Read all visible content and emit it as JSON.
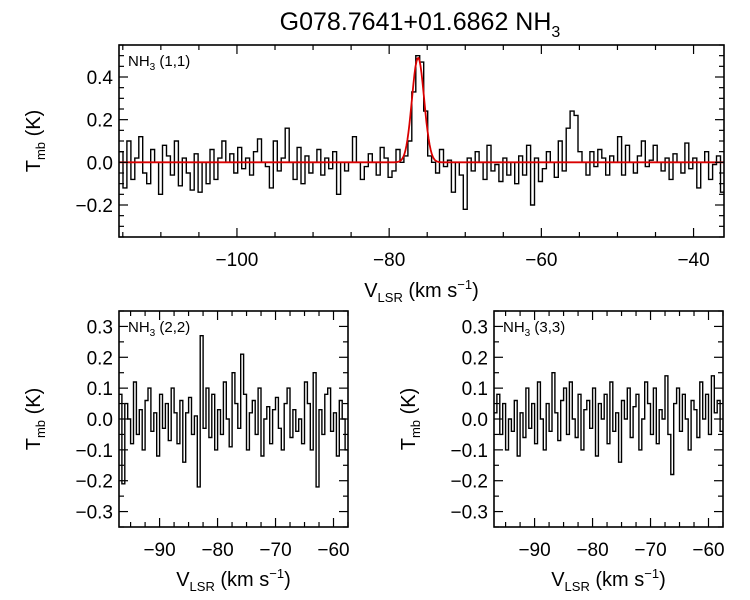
{
  "figure": {
    "title_main": "G078.7641+01.6862 NH",
    "title_sub": "3"
  },
  "chart_data": [
    {
      "type": "line",
      "panel_label": "NH3 (1,1)",
      "panel_label_main": "NH",
      "panel_label_sub": "3",
      "panel_label_suffix": " (1,1)",
      "xlabel_main": "V",
      "xlabel_sub": "LSR",
      "xlabel_unit": " (km s",
      "xlabel_exp": "−1",
      "xlabel_close": ")",
      "ylabel_main": "T",
      "ylabel_sub": "mb",
      "ylabel_unit": " (K)",
      "xlim": [
        -115.5,
        -36
      ],
      "ylim": [
        -0.35,
        0.55
      ],
      "xticks": [
        -100,
        -80,
        -60,
        -40
      ],
      "xtick_labels": [
        "−100",
        "−80",
        "−60",
        "−40"
      ],
      "yticks": [
        -0.2,
        0.0,
        0.2,
        0.4
      ],
      "ytick_labels": [
        "−0.2",
        "0.0",
        "0.2",
        "0.4"
      ],
      "series": [
        {
          "style": "histogram",
          "color": "#000000",
          "x": [
            -115.5,
            -114.98,
            -114.46,
            -113.94,
            -113.42,
            -112.9,
            -112.38,
            -111.86,
            -111.34,
            -110.82,
            -110.3,
            -109.78,
            -109.26,
            -108.74,
            -108.22,
            -107.7,
            -107.18,
            -106.66,
            -106.14,
            -105.62,
            -105.1,
            -104.58,
            -104.06,
            -103.54,
            -103.02,
            -102.5,
            -101.98,
            -101.46,
            -100.94,
            -100.42,
            -99.9,
            -99.38,
            -98.86,
            -98.34,
            -97.82,
            -97.3,
            -96.78,
            -96.26,
            -95.74,
            -95.22,
            -94.7,
            -94.18,
            -93.66,
            -93.14,
            -92.62,
            -92.1,
            -91.58,
            -91.06,
            -90.54,
            -90.02,
            -89.5,
            -88.98,
            -88.46,
            -87.94,
            -87.42,
            -86.9,
            -86.38,
            -85.86,
            -85.34,
            -84.82,
            -84.3,
            -83.78,
            -83.26,
            -82.74,
            -82.22,
            -81.7,
            -81.18,
            -80.66,
            -80.14,
            -79.62,
            -79.1,
            -78.58,
            -78.06,
            -77.54,
            -77.02,
            -76.5,
            -75.98,
            -75.46,
            -74.94,
            -74.42,
            -73.9,
            -73.38,
            -72.86,
            -72.34,
            -71.82,
            -71.3,
            -70.78,
            -70.26,
            -69.74,
            -69.22,
            -68.7,
            -68.18,
            -67.66,
            -67.14,
            -66.62,
            -66.1,
            -65.58,
            -65.06,
            -64.54,
            -64.02,
            -63.5,
            -62.98,
            -62.46,
            -61.94,
            -61.42,
            -60.9,
            -60.38,
            -59.86,
            -59.34,
            -58.82,
            -58.3,
            -57.78,
            -57.26,
            -56.74,
            -56.22,
            -55.7,
            -55.18,
            -54.66,
            -54.14,
            -53.62,
            -53.1,
            -52.58,
            -52.06,
            -51.54,
            -51.02,
            -50.5,
            -49.98,
            -49.46,
            -48.94,
            -48.42,
            -47.9,
            -47.38,
            -46.86,
            -46.34,
            -45.82,
            -45.3,
            -44.78,
            -44.26,
            -43.74,
            -43.22,
            -42.7,
            -42.18,
            -41.66,
            -41.14,
            -40.62,
            -40.1,
            -39.58,
            -39.06,
            -38.54,
            -38.02,
            -37.5,
            -36.98,
            -36.46
          ],
          "values": [
            0.05,
            -0.12,
            0.1,
            -0.08,
            0.02,
            0.12,
            -0.05,
            -0.1,
            0.06,
            0.0,
            -0.15,
            0.08,
            0.03,
            -0.06,
            0.1,
            -0.11,
            0.02,
            -0.05,
            -0.13,
            0.04,
            -0.14,
            0.0,
            -0.1,
            0.06,
            -0.08,
            0.02,
            0.1,
            0.0,
            0.04,
            -0.05,
            0.07,
            -0.03,
            0.02,
            -0.06,
            0.05,
            0.11,
            0.0,
            -0.02,
            -0.12,
            0.1,
            -0.04,
            0.02,
            0.16,
            0.0,
            -0.08,
            0.07,
            -0.1,
            0.03,
            -0.05,
            0.0,
            0.06,
            -0.06,
            0.02,
            -0.03,
            0.05,
            -0.15,
            0.0,
            -0.04,
            0.0,
            0.12,
            0.0,
            -0.08,
            -0.02,
            0.04,
            0.0,
            -0.06,
            0.07,
            0.02,
            -0.07,
            -0.04,
            0.06,
            0.0,
            0.03,
            0.1,
            0.33,
            0.5,
            0.47,
            0.24,
            0.03,
            0.0,
            -0.05,
            0.06,
            -0.02,
            0.01,
            -0.14,
            0.0,
            -0.06,
            -0.22,
            0.02,
            -0.04,
            0.05,
            0.0,
            -0.08,
            0.08,
            -0.04,
            -0.01,
            -0.09,
            0.02,
            -0.06,
            0.0,
            -0.1,
            0.03,
            -0.06,
            0.08,
            -0.2,
            0.02,
            -0.09,
            -0.03,
            0.05,
            0.0,
            -0.07,
            0.1,
            -0.04,
            0.16,
            0.24,
            0.22,
            0.05,
            0.0,
            -0.06,
            0.05,
            -0.02,
            0.06,
            0.02,
            -0.06,
            0.03,
            0.0,
            0.12,
            -0.06,
            0.08,
            0.0,
            -0.05,
            0.03,
            0.1,
            -0.02,
            0.01,
            0.08,
            0.0,
            -0.04,
            0.02,
            -0.08,
            0.04,
            0.0,
            -0.05,
            0.09,
            -0.03,
            0.02,
            -0.12,
            0.0,
            0.05,
            -0.08,
            -0.01,
            0.03,
            -0.14
          ]
        },
        {
          "style": "gaussian-fit",
          "color": "#d90000",
          "amplitude": 0.49,
          "center": -76.2,
          "sigma": 0.8
        }
      ]
    },
    {
      "type": "line",
      "panel_label": "NH3 (2,2)",
      "panel_label_main": "NH",
      "panel_label_sub": "3",
      "panel_label_suffix": " (2,2)",
      "xlabel_main": "V",
      "xlabel_sub": "LSR",
      "xlabel_unit": " (km s",
      "xlabel_exp": "−1",
      "xlabel_close": ")",
      "ylabel_main": "T",
      "ylabel_sub": "mb",
      "ylabel_unit": " (K)",
      "xlim": [
        -97,
        -57.5
      ],
      "ylim": [
        -0.35,
        0.35
      ],
      "xticks": [
        -90,
        -80,
        -70,
        -60
      ],
      "xtick_labels": [
        "−90",
        "−80",
        "−70",
        "−60"
      ],
      "yticks": [
        -0.3,
        -0.2,
        -0.1,
        0.0,
        0.1,
        0.2,
        0.3
      ],
      "ytick_labels": [
        "−0.3",
        "−0.2",
        "−0.1",
        "0.0",
        "0.1",
        "0.2",
        "0.3"
      ],
      "series": [
        {
          "style": "histogram",
          "color": "#000000",
          "x": [
            -97.0,
            -96.5,
            -96.0,
            -95.5,
            -95.0,
            -94.5,
            -94.0,
            -93.5,
            -93.0,
            -92.5,
            -92.0,
            -91.5,
            -91.0,
            -90.5,
            -90.0,
            -89.5,
            -89.0,
            -88.5,
            -88.0,
            -87.5,
            -87.0,
            -86.5,
            -86.0,
            -85.5,
            -85.0,
            -84.5,
            -84.0,
            -83.5,
            -83.0,
            -82.5,
            -82.0,
            -81.5,
            -81.0,
            -80.5,
            -80.0,
            -79.5,
            -79.0,
            -78.5,
            -78.0,
            -77.5,
            -77.0,
            -76.5,
            -76.0,
            -75.5,
            -75.0,
            -74.5,
            -74.0,
            -73.5,
            -73.0,
            -72.5,
            -72.0,
            -71.5,
            -71.0,
            -70.5,
            -70.0,
            -69.5,
            -69.0,
            -68.5,
            -68.0,
            -67.5,
            -67.0,
            -66.5,
            -66.0,
            -65.5,
            -65.0,
            -64.5,
            -64.0,
            -63.5,
            -63.0,
            -62.5,
            -62.0,
            -61.5,
            -61.0,
            -60.5,
            -60.0,
            -59.5,
            -59.0,
            -58.5,
            -58.0
          ],
          "values": [
            0.08,
            -0.21,
            0.05,
            0.0,
            -0.08,
            0.12,
            -0.05,
            0.03,
            -0.1,
            0.06,
            0.1,
            -0.04,
            0.02,
            -0.12,
            0.08,
            -0.03,
            0.05,
            -0.07,
            0.1,
            0.02,
            -0.08,
            0.06,
            -0.14,
            0.02,
            0.07,
            -0.05,
            0.01,
            -0.22,
            0.27,
            -0.03,
            0.1,
            -0.06,
            0.08,
            -0.1,
            0.03,
            -0.05,
            0.12,
            0.0,
            -0.09,
            0.15,
            0.05,
            -0.03,
            0.21,
            0.08,
            -0.1,
            0.02,
            0.06,
            -0.05,
            0.1,
            -0.12,
            0.0,
            0.04,
            -0.08,
            0.03,
            0.07,
            -0.03,
            -0.1,
            0.05,
            0.1,
            -0.06,
            0.03,
            -0.04,
            0.0,
            -0.08,
            0.12,
            0.05,
            -0.1,
            0.15,
            -0.22,
            0.03,
            -0.05,
            0.08,
            0.1,
            -0.04,
            0.02,
            -0.12,
            0.06,
            0.0,
            -0.1
          ]
        }
      ]
    },
    {
      "type": "line",
      "panel_label": "NH3 (3,3)",
      "panel_label_main": "NH",
      "panel_label_sub": "3",
      "panel_label_suffix": " (3,3)",
      "xlabel_main": "V",
      "xlabel_sub": "LSR",
      "xlabel_unit": " (km s",
      "xlabel_exp": "−1",
      "xlabel_close": ")",
      "ylabel_main": "T",
      "ylabel_sub": "mb",
      "ylabel_unit": " (K)",
      "xlim": [
        -97,
        -57.5
      ],
      "ylim": [
        -0.35,
        0.35
      ],
      "xticks": [
        -90,
        -80,
        -70,
        -60
      ],
      "xtick_labels": [
        "−90",
        "−80",
        "−70",
        "−60"
      ],
      "yticks": [
        -0.3,
        -0.2,
        -0.1,
        0.0,
        0.1,
        0.2,
        0.3
      ],
      "ytick_labels": [
        "−0.3",
        "−0.2",
        "−0.1",
        "0.0",
        "0.1",
        "0.2",
        "0.3"
      ],
      "series": [
        {
          "style": "histogram",
          "color": "#000000",
          "x": [
            -97.0,
            -96.5,
            -96.0,
            -95.5,
            -95.0,
            -94.5,
            -94.0,
            -93.5,
            -93.0,
            -92.5,
            -92.0,
            -91.5,
            -91.0,
            -90.5,
            -90.0,
            -89.5,
            -89.0,
            -88.5,
            -88.0,
            -87.5,
            -87.0,
            -86.5,
            -86.0,
            -85.5,
            -85.0,
            -84.5,
            -84.0,
            -83.5,
            -83.0,
            -82.5,
            -82.0,
            -81.5,
            -81.0,
            -80.5,
            -80.0,
            -79.5,
            -79.0,
            -78.5,
            -78.0,
            -77.5,
            -77.0,
            -76.5,
            -76.0,
            -75.5,
            -75.0,
            -74.5,
            -74.0,
            -73.5,
            -73.0,
            -72.5,
            -72.0,
            -71.5,
            -71.0,
            -70.5,
            -70.0,
            -69.5,
            -69.0,
            -68.5,
            -68.0,
            -67.5,
            -67.0,
            -66.5,
            -66.0,
            -65.5,
            -65.0,
            -64.5,
            -64.0,
            -63.5,
            -63.0,
            -62.5,
            -62.0,
            -61.5,
            -61.0,
            -60.5,
            -60.0,
            -59.5,
            -59.0,
            -58.5,
            -58.0
          ],
          "values": [
            0.02,
            0.08,
            -0.05,
            0.05,
            -0.1,
            0.0,
            -0.04,
            0.06,
            -0.12,
            0.02,
            -0.06,
            0.1,
            -0.03,
            0.05,
            -0.08,
            0.12,
            0.0,
            -0.1,
            0.05,
            -0.04,
            0.15,
            0.02,
            -0.07,
            0.06,
            0.1,
            -0.05,
            0.12,
            0.0,
            -0.06,
            0.08,
            -0.1,
            0.03,
            0.06,
            -0.03,
            0.1,
            -0.12,
            0.05,
            0.0,
            0.08,
            -0.08,
            0.12,
            -0.04,
            0.02,
            -0.14,
            0.06,
            0.0,
            0.1,
            -0.06,
            0.04,
            0.08,
            -0.1,
            0.0,
            0.12,
            0.05,
            -0.05,
            0.1,
            -0.08,
            0.03,
            0.0,
            0.14,
            -0.05,
            -0.18,
            0.05,
            0.1,
            -0.04,
            0.08,
            0.0,
            -0.1,
            0.06,
            0.03,
            -0.06,
            0.12,
            0.0,
            0.08,
            -0.05,
            0.14,
            0.02,
            0.06,
            -0.04
          ]
        }
      ]
    }
  ]
}
